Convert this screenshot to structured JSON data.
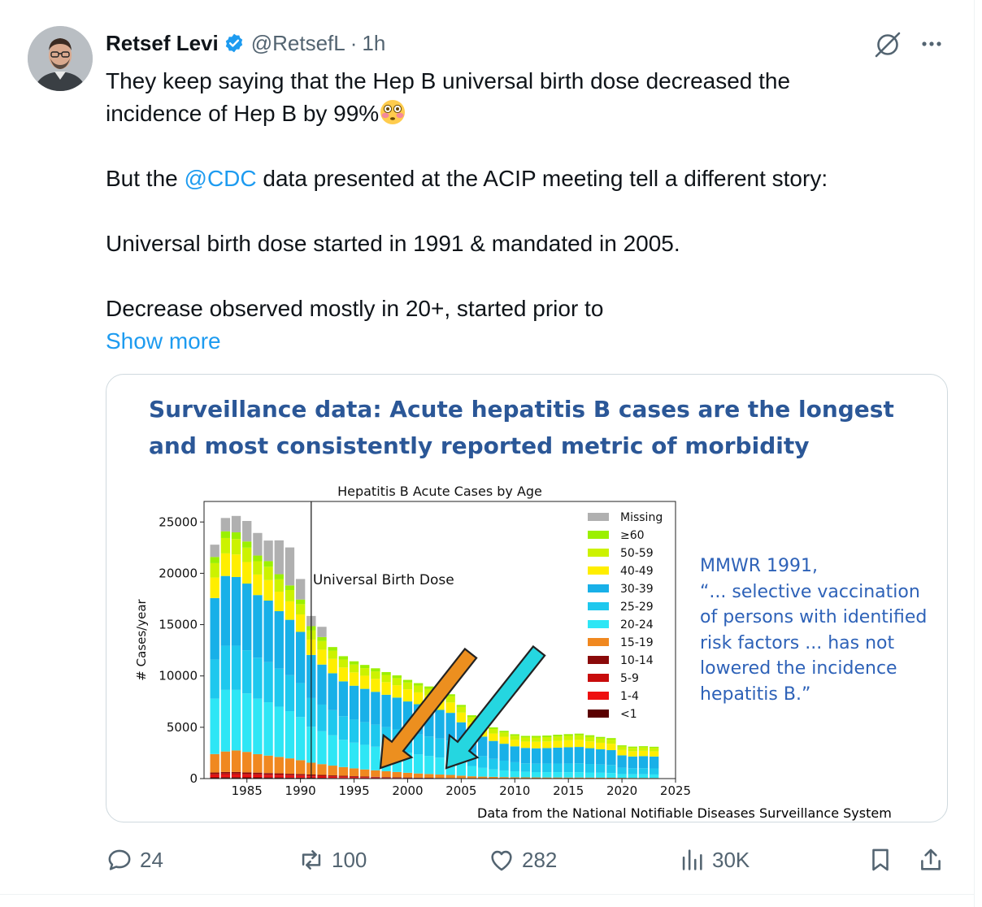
{
  "author": {
    "name": "Retsef Levi",
    "handle": "@RetsefL",
    "separator": "·",
    "time": "1h"
  },
  "tweet": {
    "line1": "They keep saying that the Hep B universal birth dose decreased the",
    "line2": "incidence of Hep B by 99%",
    "line3_before": "But the ",
    "line3_mention": "@CDC",
    "line3_after": " data presented at the ACIP meeting tell a different story:",
    "line4": "Universal birth dose started in 1991 & mandated in 2005.",
    "line5": "Decrease observed mostly in 20+, started prior to",
    "show_more": "Show more"
  },
  "media": {
    "slide_title": "Surveillance data: Acute hepatitis B cases are the longest and most consistently reported metric of morbidity",
    "mmwr_lines": [
      "MMWR 1991,",
      "“... selective vaccination",
      "of persons with identified",
      "risk factors ... has not",
      "lowered the incidence",
      "hepatitis B.”"
    ],
    "source_note": "Data from the National Notifiable Diseases Surveillance System"
  },
  "chart_data": {
    "type": "bar",
    "stacked": true,
    "title": "Hepatitis B Acute Cases by Age",
    "xlabel": "",
    "ylabel": "# Cases/year",
    "xlim": [
      1981,
      2025
    ],
    "ylim": [
      0,
      27000
    ],
    "x_ticks": [
      1985,
      1990,
      1995,
      2000,
      2005,
      2010,
      2015,
      2020,
      2025
    ],
    "y_ticks": [
      0,
      5000,
      10000,
      15000,
      20000,
      25000
    ],
    "annotation": "Universal Birth Dose",
    "annotation_x": 1991,
    "legend_position": "upper-right",
    "years": [
      1982,
      1983,
      1984,
      1985,
      1986,
      1987,
      1988,
      1989,
      1990,
      1991,
      1992,
      1993,
      1994,
      1995,
      1996,
      1997,
      1998,
      1999,
      2000,
      2001,
      2002,
      2003,
      2004,
      2005,
      2006,
      2007,
      2008,
      2009,
      2010,
      2011,
      2012,
      2013,
      2014,
      2015,
      2016,
      2017,
      2018,
      2019,
      2020,
      2021,
      2022,
      2023
    ],
    "series": [
      {
        "name": "Missing",
        "color": "#b0b0b0",
        "values": [
          1200,
          1300,
          1600,
          2000,
          2200,
          2000,
          3300,
          3700,
          2000,
          1000,
          1000,
          0,
          0,
          0,
          0,
          0,
          0,
          0,
          0,
          0,
          0,
          0,
          0,
          0,
          0,
          0,
          0,
          0,
          0,
          0,
          0,
          0,
          0,
          0,
          0,
          0,
          0,
          0,
          0,
          0,
          0,
          0
        ]
      },
      {
        "name": "≥60",
        "color": "#9bf000",
        "values": [
          600,
          650,
          650,
          600,
          550,
          550,
          500,
          450,
          450,
          400,
          380,
          350,
          330,
          320,
          310,
          300,
          280,
          270,
          250,
          240,
          230,
          220,
          200,
          190,
          180,
          170,
          160,
          160,
          150,
          150,
          160,
          160,
          170,
          170,
          170,
          170,
          160,
          150,
          130,
          130,
          120,
          120
        ]
      },
      {
        "name": "50-59",
        "color": "#ccf200",
        "values": [
          1400,
          1500,
          1500,
          1400,
          1300,
          1300,
          1200,
          1100,
          1000,
          900,
          850,
          800,
          770,
          760,
          740,
          730,
          700,
          690,
          670,
          660,
          640,
          620,
          600,
          560,
          510,
          470,
          440,
          420,
          400,
          400,
          420,
          420,
          430,
          430,
          440,
          430,
          410,
          400,
          330,
          320,
          330,
          320
        ]
      },
      {
        "name": "40-49",
        "color": "#ffee00",
        "values": [
          2000,
          2200,
          2200,
          2100,
          2000,
          2000,
          1900,
          1800,
          1700,
          1500,
          1450,
          1400,
          1350,
          1300,
          1280,
          1260,
          1230,
          1200,
          1180,
          1150,
          1110,
          1060,
          1010,
          940,
          850,
          780,
          720,
          680,
          630,
          620,
          630,
          640,
          660,
          680,
          690,
          660,
          640,
          620,
          520,
          510,
          520,
          510
        ]
      },
      {
        "name": "30-39",
        "color": "#18b0e8",
        "values": [
          6000,
          6800,
          6700,
          6500,
          6100,
          6000,
          5600,
          5400,
          5000,
          4200,
          3900,
          3600,
          3400,
          3300,
          3250,
          3200,
          3150,
          3100,
          3000,
          2950,
          2900,
          2800,
          2700,
          2400,
          2100,
          1900,
          1750,
          1650,
          1550,
          1500,
          1500,
          1520,
          1550,
          1580,
          1600,
          1540,
          1480,
          1450,
          1200,
          1150,
          1170,
          1160
        ]
      },
      {
        "name": "25-29",
        "color": "#1ec8ee",
        "values": [
          3800,
          4300,
          4300,
          4200,
          4000,
          3900,
          3700,
          3500,
          3300,
          2800,
          2600,
          2450,
          2300,
          2250,
          2200,
          2150,
          2100,
          2050,
          2000,
          1950,
          1900,
          1850,
          1800,
          1550,
          1300,
          1150,
          1020,
          950,
          880,
          830,
          820,
          830,
          840,
          850,
          860,
          830,
          800,
          780,
          620,
          590,
          600,
          590
        ]
      },
      {
        "name": "20-24",
        "color": "#2ee6f5",
        "values": [
          5400,
          6000,
          5900,
          5700,
          5400,
          5200,
          4900,
          4600,
          4200,
          3500,
          3200,
          2950,
          2650,
          2500,
          2400,
          2300,
          2200,
          2100,
          1950,
          1850,
          1750,
          1650,
          1550,
          1250,
          1000,
          850,
          730,
          650,
          580,
          540,
          520,
          520,
          520,
          520,
          520,
          500,
          480,
          460,
          370,
          350,
          350,
          340
        ]
      },
      {
        "name": "15-19",
        "color": "#f08820",
        "values": [
          1800,
          2000,
          2100,
          2000,
          1800,
          1700,
          1600,
          1500,
          1350,
          1150,
          1050,
          950,
          850,
          760,
          690,
          630,
          570,
          520,
          460,
          410,
          370,
          330,
          300,
          240,
          190,
          160,
          140,
          120,
          110,
          100,
          95,
          90,
          90,
          85,
          85,
          80,
          75,
          70,
          60,
          55,
          55,
          50
        ]
      },
      {
        "name": "10-14",
        "color": "#8a0a0a",
        "values": [
          130,
          140,
          140,
          130,
          130,
          120,
          110,
          100,
          95,
          85,
          80,
          72,
          65,
          58,
          50,
          44,
          38,
          34,
          30,
          26,
          23,
          20,
          18,
          15,
          12,
          10,
          9,
          8,
          7,
          6,
          6,
          5,
          5,
          5,
          5,
          4,
          4,
          4,
          3,
          3,
          3,
          3
        ]
      },
      {
        "name": "5-9",
        "color": "#c80c0c",
        "values": [
          140,
          150,
          150,
          140,
          130,
          120,
          110,
          100,
          95,
          85,
          78,
          70,
          62,
          54,
          46,
          40,
          34,
          29,
          25,
          21,
          18,
          15,
          13,
          11,
          9,
          8,
          7,
          6,
          5,
          5,
          4,
          4,
          4,
          4,
          4,
          3,
          3,
          3,
          3,
          3,
          3,
          3
        ]
      },
      {
        "name": "1-4",
        "color": "#ee1010",
        "values": [
          200,
          220,
          220,
          210,
          200,
          190,
          180,
          170,
          160,
          140,
          125,
          110,
          95,
          82,
          70,
          60,
          50,
          42,
          35,
          29,
          24,
          20,
          17,
          14,
          11,
          9,
          8,
          7,
          6,
          5,
          5,
          5,
          5,
          4,
          4,
          4,
          4,
          4,
          3,
          3,
          3,
          3
        ]
      },
      {
        "name": "<1",
        "color": "#5a0000",
        "values": [
          120,
          130,
          130,
          120,
          120,
          110,
          110,
          100,
          95,
          85,
          75,
          62,
          52,
          44,
          36,
          30,
          25,
          20,
          16,
          13,
          10,
          8,
          7,
          6,
          5,
          4,
          4,
          3,
          3,
          3,
          3,
          3,
          3,
          3,
          3,
          3,
          3,
          3,
          2,
          2,
          2,
          2
        ]
      }
    ]
  },
  "actions": {
    "replies": "24",
    "reposts": "100",
    "likes": "282",
    "views": "30K"
  },
  "colors": {
    "link": "#1d9bf0",
    "secondary": "#536471",
    "slide_title": "#2b5797",
    "mmwr_text": "#2e62b8",
    "orange_arrow": "#ec8f1f",
    "cyan_arrow": "#25d6e0"
  }
}
